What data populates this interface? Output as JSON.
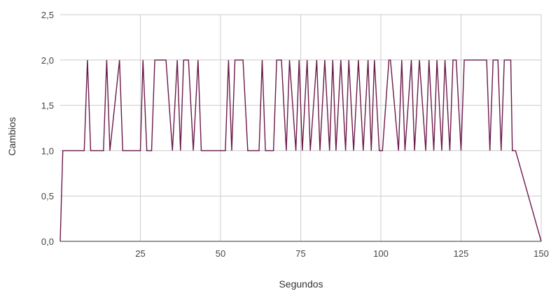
{
  "chart_data": {
    "type": "line",
    "xlabel": "Segundos",
    "ylabel": "Cambios",
    "xlim": [
      0,
      150
    ],
    "ylim": [
      0,
      2.5
    ],
    "x_ticks": [
      "25",
      "50",
      "75",
      "100",
      "125",
      "150"
    ],
    "y_ticks": [
      "0,0",
      "0,5",
      "1,0",
      "1,5",
      "2,0",
      "2,5"
    ],
    "grid": true,
    "colors": {
      "line": "#6b1a4a",
      "grid": "#cccccc",
      "axis": "#333333"
    },
    "series": [
      {
        "x": [
          0,
          0.8,
          7.5,
          8.5,
          9.5,
          13.5,
          14.5,
          15.5,
          18.5,
          19.5,
          20.5,
          25,
          25.8,
          27,
          28.5,
          29.5,
          33,
          35,
          36.5,
          37.5,
          38.5,
          40,
          41.5,
          43,
          44,
          45,
          51.5,
          52.5,
          53.5,
          54.5,
          57,
          58.5,
          62,
          63,
          64,
          66.5,
          67.5,
          69,
          70.5,
          71.5,
          73.5,
          74.5,
          75.5,
          77,
          78,
          80,
          81,
          82.5,
          84,
          85,
          86,
          87.5,
          89,
          90,
          91.5,
          93,
          94.5,
          96,
          97,
          98,
          99.5,
          100.5,
          102.5,
          103,
          105.5,
          106.5,
          107.5,
          109.5,
          110.5,
          112,
          114,
          115,
          116.5,
          117.5,
          119,
          120,
          121.5,
          122.5,
          123.5,
          125,
          126,
          127,
          133,
          134,
          135,
          136.5,
          137.5,
          138.5,
          140.5,
          141,
          142,
          150
        ],
        "y": [
          0,
          1,
          1,
          2,
          1,
          1,
          2,
          1,
          2,
          1,
          1,
          1,
          2,
          1,
          1,
          2,
          2,
          1,
          2,
          1,
          2,
          2,
          1,
          2,
          1,
          1,
          1,
          2,
          1,
          2,
          2,
          1,
          1,
          2,
          1,
          1,
          2,
          2,
          1,
          2,
          1,
          2,
          1,
          2,
          1,
          2,
          1,
          2,
          1,
          2,
          1,
          2,
          1,
          2,
          1,
          2,
          1,
          2,
          1,
          2,
          1,
          1,
          2,
          2,
          1,
          2,
          1,
          2,
          1,
          2,
          1,
          2,
          1,
          2,
          1,
          2,
          1,
          2,
          2,
          1,
          2,
          2,
          2,
          1,
          2,
          2,
          1,
          2,
          2,
          1,
          1,
          0
        ]
      }
    ]
  }
}
